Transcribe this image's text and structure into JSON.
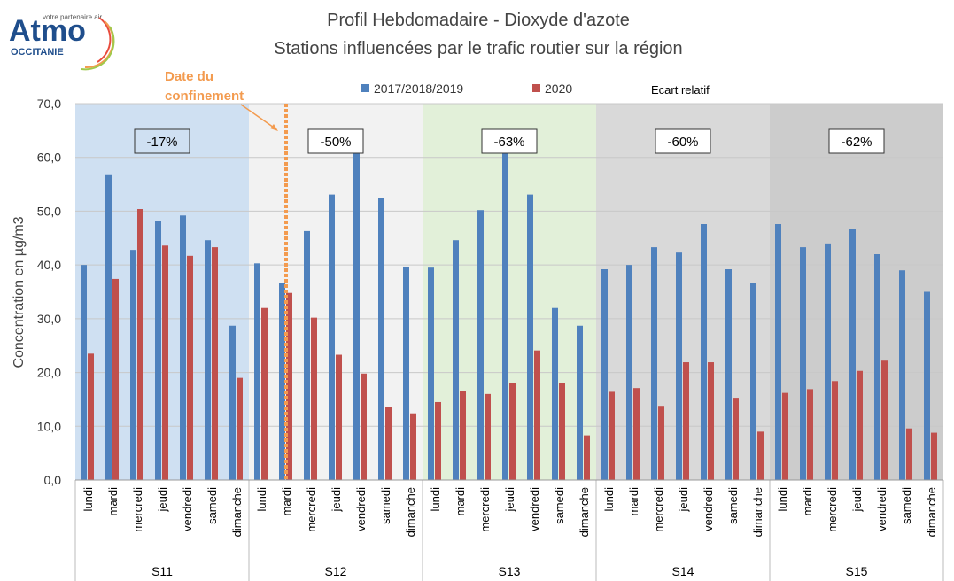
{
  "logo": {
    "name": "Atmo",
    "tagline": "votre partenaire air",
    "region": "OCCITANIE"
  },
  "chart_data": {
    "type": "bar",
    "title": "Profil Hebdomadaire - Dioxyde d'azote",
    "subtitle": "Stations influencées par le trafic routier sur la région",
    "y_label": "Concentration en µg/m3",
    "annotation": "Date du confinement",
    "annotation_color": "#f39b4f",
    "note_legend": "Ecart relatif",
    "groups": [
      {
        "label": "S11",
        "note": "-17%",
        "background": "#cfe0f2",
        "days": [
          "lundi",
          "mardi",
          "mercredi",
          "jeudi",
          "vendredi",
          "samedi",
          "dimanche"
        ]
      },
      {
        "label": "S12",
        "note": "-50%",
        "background": "#f2f2f2",
        "days": [
          "lundi",
          "mardi",
          "mercredi",
          "jeudi",
          "vendredi",
          "samedi",
          "dimanche"
        ]
      },
      {
        "label": "S13",
        "note": "-63%",
        "background": "#e2f0d9",
        "days": [
          "lundi",
          "mardi",
          "mercredi",
          "jeudi",
          "vendredi",
          "samedi",
          "dimanche"
        ]
      },
      {
        "label": "S14",
        "note": "-60%",
        "background": "#d9d9d9",
        "days": [
          "lundi",
          "mardi",
          "mercredi",
          "jeudi",
          "vendredi",
          "samedi",
          "dimanche"
        ]
      },
      {
        "label": "S15",
        "note": "-62%",
        "background": "#cccccc",
        "days": [
          "lundi",
          "mardi",
          "mercredi",
          "jeudi",
          "vendredi",
          "samedi",
          "dimanche"
        ]
      }
    ],
    "series": [
      {
        "name": "2017/2018/2019",
        "color": "#4f81bd",
        "values": [
          40.0,
          56.7,
          42.8,
          48.2,
          49.2,
          44.6,
          28.7,
          40.3,
          36.6,
          46.3,
          53.1,
          62.4,
          52.5,
          39.7,
          39.5,
          44.6,
          50.2,
          61.2,
          53.1,
          32.0,
          28.7,
          39.2,
          40.0,
          43.3,
          42.3,
          47.6,
          39.2,
          36.6,
          47.6,
          43.3,
          44.0,
          46.7,
          42.0,
          39.0,
          35.0
        ]
      },
      {
        "name": "2020",
        "color": "#c0504d",
        "values": [
          23.5,
          37.4,
          50.4,
          43.6,
          41.7,
          43.3,
          19.0,
          32.0,
          34.8,
          30.2,
          23.3,
          19.8,
          13.6,
          12.4,
          14.5,
          16.5,
          16.0,
          18.0,
          24.1,
          18.1,
          8.3,
          16.4,
          17.1,
          13.8,
          21.9,
          21.9,
          15.3,
          9.0,
          16.2,
          16.9,
          18.4,
          20.3,
          22.2,
          9.6,
          8.8
        ]
      }
    ],
    "ylim": [
      0,
      70
    ],
    "yticks": [
      {
        "value": 0,
        "label": "0,0"
      },
      {
        "value": 10,
        "label": "10,0"
      },
      {
        "value": 20,
        "label": "20,0"
      },
      {
        "value": 30,
        "label": "30,0"
      },
      {
        "value": 40,
        "label": "40,0"
      },
      {
        "value": 50,
        "label": "50,0"
      },
      {
        "value": 60,
        "label": "60,0"
      },
      {
        "value": 70,
        "label": "70,0"
      }
    ],
    "grid": true
  }
}
